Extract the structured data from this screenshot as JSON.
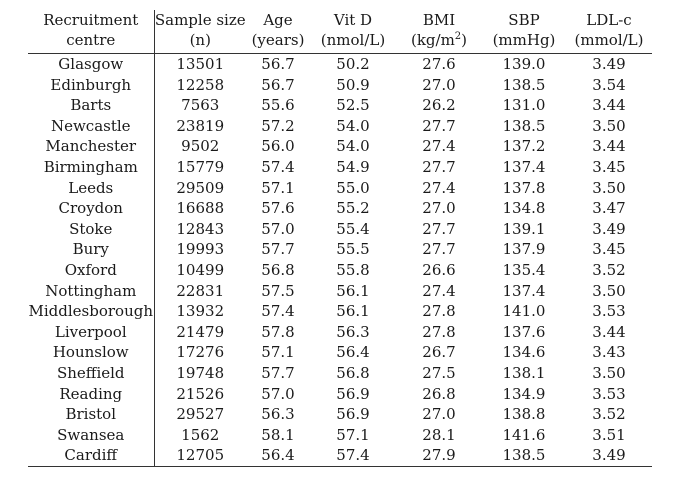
{
  "table": {
    "headers": [
      {
        "line1": "Recruitment",
        "line2": "centre"
      },
      {
        "line1": "Sample size",
        "line2": "(n)"
      },
      {
        "line1": "Age",
        "line2": "(years)"
      },
      {
        "line1": "Vit D",
        "line2": "(nmol/L)"
      },
      {
        "line1": "BMI",
        "line2_pre": "(kg/m",
        "line2_sup": "2",
        "line2_post": ")"
      },
      {
        "line1": "SBP",
        "line2": "(mmHg)"
      },
      {
        "line1": "LDL-c",
        "line2": "(mmol/L)"
      }
    ],
    "rows": [
      {
        "centre": "Glasgow",
        "n": "13501",
        "age": "56.7",
        "vitd": "50.2",
        "bmi": "27.6",
        "sbp": "139.0",
        "ldl": "3.49"
      },
      {
        "centre": "Edinburgh",
        "n": "12258",
        "age": "56.7",
        "vitd": "50.9",
        "bmi": "27.0",
        "sbp": "138.5",
        "ldl": "3.54"
      },
      {
        "centre": "Barts",
        "n": "7563",
        "age": "55.6",
        "vitd": "52.5",
        "bmi": "26.2",
        "sbp": "131.0",
        "ldl": "3.44"
      },
      {
        "centre": "Newcastle",
        "n": "23819",
        "age": "57.2",
        "vitd": "54.0",
        "bmi": "27.7",
        "sbp": "138.5",
        "ldl": "3.50"
      },
      {
        "centre": "Manchester",
        "n": "9502",
        "age": "56.0",
        "vitd": "54.0",
        "bmi": "27.4",
        "sbp": "137.2",
        "ldl": "3.44"
      },
      {
        "centre": "Birmingham",
        "n": "15779",
        "age": "57.4",
        "vitd": "54.9",
        "bmi": "27.7",
        "sbp": "137.4",
        "ldl": "3.45"
      },
      {
        "centre": "Leeds",
        "n": "29509",
        "age": "57.1",
        "vitd": "55.0",
        "bmi": "27.4",
        "sbp": "137.8",
        "ldl": "3.50"
      },
      {
        "centre": "Croydon",
        "n": "16688",
        "age": "57.6",
        "vitd": "55.2",
        "bmi": "27.0",
        "sbp": "134.8",
        "ldl": "3.47"
      },
      {
        "centre": "Stoke",
        "n": "12843",
        "age": "57.0",
        "vitd": "55.4",
        "bmi": "27.7",
        "sbp": "139.1",
        "ldl": "3.49"
      },
      {
        "centre": "Bury",
        "n": "19993",
        "age": "57.7",
        "vitd": "55.5",
        "bmi": "27.7",
        "sbp": "137.9",
        "ldl": "3.45"
      },
      {
        "centre": "Oxford",
        "n": "10499",
        "age": "56.8",
        "vitd": "55.8",
        "bmi": "26.6",
        "sbp": "135.4",
        "ldl": "3.52"
      },
      {
        "centre": "Nottingham",
        "n": "22831",
        "age": "57.5",
        "vitd": "56.1",
        "bmi": "27.4",
        "sbp": "137.4",
        "ldl": "3.50"
      },
      {
        "centre": "Middlesborough",
        "n": "13932",
        "age": "57.4",
        "vitd": "56.1",
        "bmi": "27.8",
        "sbp": "141.0",
        "ldl": "3.53"
      },
      {
        "centre": "Liverpool",
        "n": "21479",
        "age": "57.8",
        "vitd": "56.3",
        "bmi": "27.8",
        "sbp": "137.6",
        "ldl": "3.44"
      },
      {
        "centre": "Hounslow",
        "n": "17276",
        "age": "57.1",
        "vitd": "56.4",
        "bmi": "26.7",
        "sbp": "134.6",
        "ldl": "3.43"
      },
      {
        "centre": "Sheffield",
        "n": "19748",
        "age": "57.7",
        "vitd": "56.8",
        "bmi": "27.5",
        "sbp": "138.1",
        "ldl": "3.50"
      },
      {
        "centre": "Reading",
        "n": "21526",
        "age": "57.0",
        "vitd": "56.9",
        "bmi": "26.8",
        "sbp": "134.9",
        "ldl": "3.53"
      },
      {
        "centre": "Bristol",
        "n": "29527",
        "age": "56.3",
        "vitd": "56.9",
        "bmi": "27.0",
        "sbp": "138.8",
        "ldl": "3.52"
      },
      {
        "centre": "Swansea",
        "n": "1562",
        "age": "58.1",
        "vitd": "57.1",
        "bmi": "28.1",
        "sbp": "141.6",
        "ldl": "3.51"
      },
      {
        "centre": "Cardiff",
        "n": "12705",
        "age": "56.4",
        "vitd": "57.4",
        "bmi": "27.9",
        "sbp": "138.5",
        "ldl": "3.49"
      }
    ]
  }
}
